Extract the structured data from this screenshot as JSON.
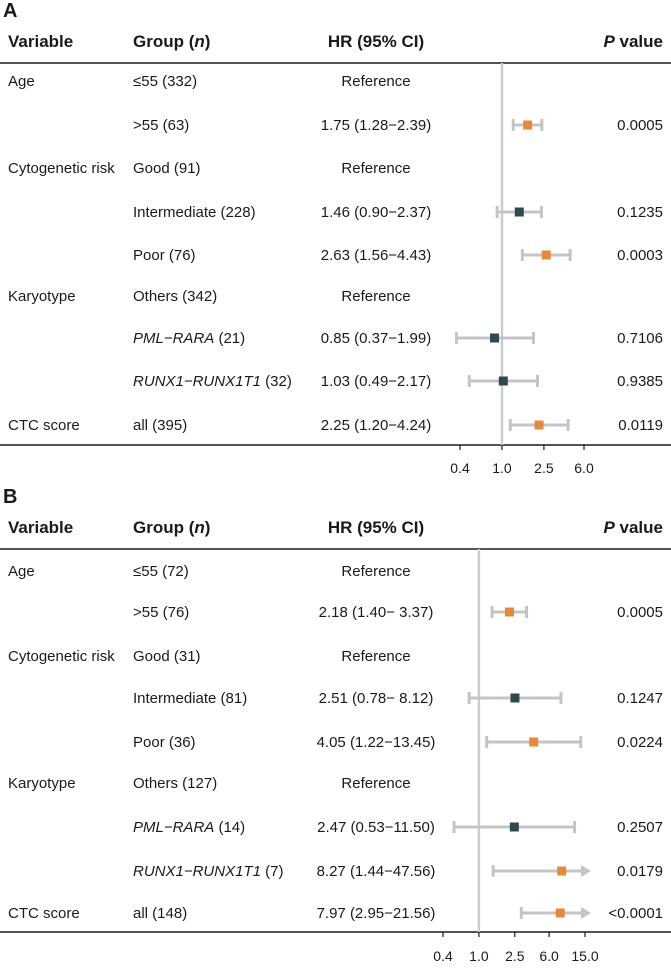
{
  "chart_data": [
    {
      "type": "forest",
      "panel": "A",
      "headers": {
        "variable": "Variable",
        "group_prefix": "Group (",
        "group_n": "n",
        "group_suffix": ")",
        "hr": "HR (95% CI)",
        "p_italic": "P",
        "p_rest": " value"
      },
      "x_scale": "log",
      "reference_line": 1.0,
      "xlim": [
        0.4,
        6.0
      ],
      "ticks": [
        0.4,
        1.0,
        2.5,
        6.0
      ],
      "tick_labels": [
        "0.4",
        "1.0",
        "2.5",
        "6.0"
      ],
      "colors": {
        "significant": "#e8893a",
        "nonsignificant": "#2e4a4c",
        "whisker": "#c4c4c4",
        "refline": "#cccccc"
      },
      "rows": [
        {
          "variable": "Age",
          "group": "≤55 (332)",
          "group_italic": "",
          "group_rest": "",
          "hr_text": "Reference",
          "hr": null,
          "lo": null,
          "hi": null,
          "p": "",
          "significant": false
        },
        {
          "variable": "",
          "group": ">55 (63)",
          "group_italic": "",
          "group_rest": "",
          "hr_text": "1.75 (1.28−2.39)",
          "hr": 1.75,
          "lo": 1.28,
          "hi": 2.39,
          "p": "0.0005",
          "significant": true
        },
        {
          "variable": "Cytogenetic risk",
          "group": "Good (91)",
          "group_italic": "",
          "group_rest": "",
          "hr_text": "Reference",
          "hr": null,
          "lo": null,
          "hi": null,
          "p": "",
          "significant": false
        },
        {
          "variable": "",
          "group": "Intermediate (228)",
          "group_italic": "",
          "group_rest": "",
          "hr_text": "1.46 (0.90−2.37)",
          "hr": 1.46,
          "lo": 0.9,
          "hi": 2.37,
          "p": "0.1235",
          "significant": false
        },
        {
          "variable": "",
          "group": "Poor (76)",
          "group_italic": "",
          "group_rest": "",
          "hr_text": "2.63 (1.56−4.43)",
          "hr": 2.63,
          "lo": 1.56,
          "hi": 4.43,
          "p": "0.0003",
          "significant": true
        },
        {
          "variable": "Karyotype",
          "group": "Others (342)",
          "group_italic": "",
          "group_rest": "",
          "hr_text": "Reference",
          "hr": null,
          "lo": null,
          "hi": null,
          "p": "",
          "significant": false
        },
        {
          "variable": "",
          "group": "",
          "group_italic": "PML−RARA",
          "group_rest": " (21)",
          "hr_text": "0.85 (0.37−1.99)",
          "hr": 0.85,
          "lo": 0.37,
          "hi": 1.99,
          "p": "0.7106",
          "significant": false
        },
        {
          "variable": "",
          "group": "",
          "group_italic": "RUNX1−RUNX1T1",
          "group_rest": " (32)",
          "hr_text": "1.03 (0.49−2.17)",
          "hr": 1.03,
          "lo": 0.49,
          "hi": 2.17,
          "p": "0.9385",
          "significant": false
        },
        {
          "variable": "CTC score",
          "group": "all (395)",
          "group_italic": "",
          "group_rest": "",
          "hr_text": "2.25 (1.20−4.24)",
          "hr": 2.25,
          "lo": 1.2,
          "hi": 4.24,
          "p": "0.0119",
          "significant": true
        }
      ]
    },
    {
      "type": "forest",
      "panel": "B",
      "headers": {
        "variable": "Variable",
        "group_prefix": "Group (",
        "group_n": "n",
        "group_suffix": ")",
        "hr": "HR (95% CI)",
        "p_italic": "P",
        "p_rest": " value"
      },
      "x_scale": "log",
      "reference_line": 1.0,
      "xlim": [
        0.4,
        15.0
      ],
      "ticks": [
        0.4,
        1.0,
        2.5,
        6.0,
        15.0
      ],
      "tick_labels": [
        "0.4",
        "1.0",
        "2.5",
        "6.0",
        "15.0"
      ],
      "colors": {
        "significant": "#e8893a",
        "nonsignificant": "#2e4a4c",
        "whisker": "#c4c4c4",
        "refline": "#cccccc"
      },
      "rows": [
        {
          "variable": "Age",
          "group": "≤55 (72)",
          "group_italic": "",
          "group_rest": "",
          "hr_text": "Reference",
          "hr": null,
          "lo": null,
          "hi": null,
          "p": "",
          "significant": false
        },
        {
          "variable": "",
          "group": ">55 (76)",
          "group_italic": "",
          "group_rest": "",
          "hr_text": "2.18 (1.40− 3.37)",
          "hr": 2.18,
          "lo": 1.4,
          "hi": 3.37,
          "p": "0.0005",
          "significant": true
        },
        {
          "variable": "Cytogenetic risk",
          "group": "Good (31)",
          "group_italic": "",
          "group_rest": "",
          "hr_text": "Reference",
          "hr": null,
          "lo": null,
          "hi": null,
          "p": "",
          "significant": false
        },
        {
          "variable": "",
          "group": "Intermediate (81)",
          "group_italic": "",
          "group_rest": "",
          "hr_text": "2.51 (0.78− 8.12)",
          "hr": 2.51,
          "lo": 0.78,
          "hi": 8.12,
          "p": "0.1247",
          "significant": false
        },
        {
          "variable": "",
          "group": "Poor (36)",
          "group_italic": "",
          "group_rest": "",
          "hr_text": "4.05 (1.22−13.45)",
          "hr": 4.05,
          "lo": 1.22,
          "hi": 13.45,
          "p": "0.0224",
          "significant": true
        },
        {
          "variable": "Karyotype",
          "group": "Others (127)",
          "group_italic": "",
          "group_rest": "",
          "hr_text": "Reference",
          "hr": null,
          "lo": null,
          "hi": null,
          "p": "",
          "significant": false
        },
        {
          "variable": "",
          "group": "",
          "group_italic": "PML−RARA",
          "group_rest": " (14)",
          "hr_text": "2.47 (0.53−11.50)",
          "hr": 2.47,
          "lo": 0.53,
          "hi": 11.5,
          "p": "0.2507",
          "significant": false
        },
        {
          "variable": "",
          "group": "",
          "group_italic": "RUNX1−RUNX1T1",
          "group_rest": " (7)",
          "hr_text": "8.27 (1.44−47.56)",
          "hr": 8.27,
          "lo": 1.44,
          "hi": 47.56,
          "p": "0.0179",
          "significant": true
        },
        {
          "variable": "CTC score",
          "group": "all (148)",
          "group_italic": "",
          "group_rest": "",
          "hr_text": "7.97 (2.95−21.56)",
          "hr": 7.97,
          "lo": 2.95,
          "hi": 21.56,
          "p": "<0.0001",
          "significant": true
        }
      ]
    }
  ]
}
